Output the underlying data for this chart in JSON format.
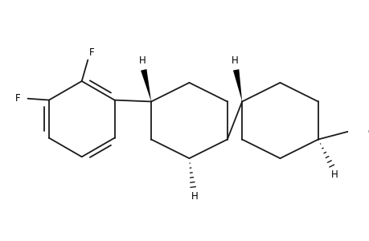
{
  "bg_color": "#ffffff",
  "line_color": "#1a1a1a",
  "bold_color": "#000000",
  "text_color": "#000000",
  "line_width": 1.3,
  "font_size": 8.5,
  "figsize": [
    4.6,
    3.0
  ],
  "dpi": 100,
  "xlim": [
    0,
    460
  ],
  "ylim": [
    0,
    300
  ]
}
